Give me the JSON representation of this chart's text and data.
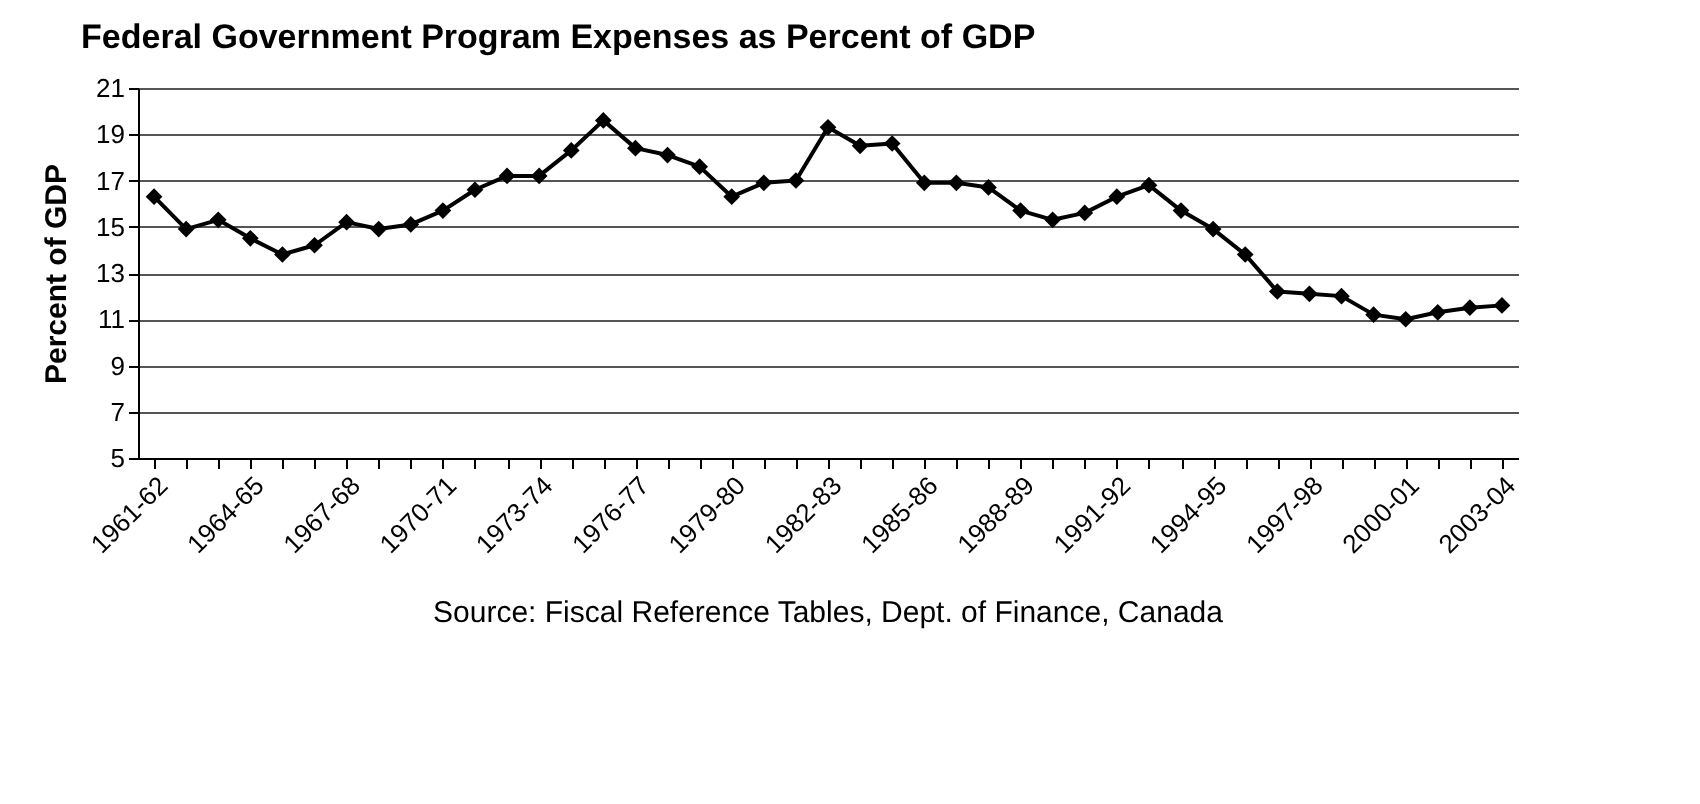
{
  "chart_data": {
    "type": "line",
    "title": "Federal Government Program Expenses as Percent of GDP",
    "ylabel": "Percent of GDP",
    "annotations": [
      "Source: Fiscal Reference Tables, Dept. of Finance, Canada"
    ],
    "categories": [
      "1961-62",
      null,
      null,
      "1964-65",
      null,
      null,
      "1967-68",
      null,
      null,
      "1970-71",
      null,
      null,
      "1973-74",
      null,
      null,
      "1976-77",
      null,
      null,
      "1979-80",
      null,
      null,
      "1982-83",
      null,
      null,
      "1985-86",
      null,
      null,
      "1988-89",
      null,
      null,
      "1991-92",
      null,
      null,
      "1994-95",
      null,
      null,
      "1997-98",
      null,
      null,
      "2000-01",
      null,
      null,
      "2003-04"
    ],
    "series": [
      {
        "color": "#000000",
        "values": [
          16.3,
          14.9,
          15.3,
          14.5,
          13.8,
          14.2,
          15.2,
          14.9,
          15.1,
          15.7,
          16.6,
          17.2,
          17.2,
          18.3,
          19.6,
          18.4,
          18.1,
          17.6,
          16.3,
          16.9,
          17.0,
          19.3,
          18.5,
          18.6,
          16.9,
          16.9,
          16.7,
          15.7,
          15.3,
          15.6,
          16.3,
          16.8,
          15.7,
          14.9,
          13.8,
          12.2,
          12.1,
          12.0,
          11.2,
          11.0,
          11.3,
          11.5,
          11.6
        ]
      }
    ],
    "ylim": [
      5,
      21
    ],
    "yticks": [
      5,
      7,
      9,
      11,
      13,
      15,
      17,
      19,
      21
    ],
    "grid": "y",
    "marker": "diamond",
    "line_style": "solid",
    "legend": false
  }
}
